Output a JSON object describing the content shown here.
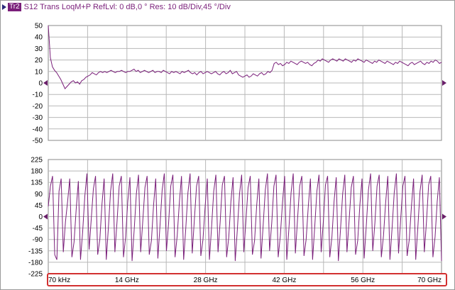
{
  "trace": {
    "tag": "Tr2",
    "info": "S12 Trans LoqM+P RefLvl: 0  dB,0 ° Res: 10  dB/Div,45 °/Div"
  },
  "colors": {
    "trace": "#7a1f7a",
    "grid": "#b8b8b8",
    "highlight_box": "#d23030",
    "ref_marker": "#6a1f6a"
  },
  "chart_data": [
    {
      "type": "line",
      "title": "",
      "xlabel": "",
      "ylabel": "",
      "ylim": [
        -50,
        50
      ],
      "yticks": [
        "50",
        "40",
        "30",
        "20",
        "10",
        "0",
        "-10",
        "-20",
        "-30",
        "-40",
        "-50"
      ],
      "reference_value": 0,
      "series": [
        {
          "values": [
            50,
            22,
            14,
            11,
            9,
            6,
            3,
            -1,
            -5,
            -3,
            -1,
            1,
            2,
            0,
            1,
            -1,
            2,
            3,
            5,
            6,
            7,
            9,
            8,
            7,
            9,
            10,
            9,
            10,
            9,
            10,
            11,
            10,
            9,
            10,
            10,
            11,
            10,
            9,
            10,
            10,
            11,
            12,
            10,
            11,
            9,
            10,
            11,
            10,
            9,
            10,
            11,
            9,
            10,
            10,
            9,
            11,
            10,
            9,
            8,
            10,
            9,
            10,
            9,
            8,
            10,
            9,
            10,
            11,
            9,
            8,
            9,
            7,
            9,
            10,
            8,
            9,
            10,
            9,
            8,
            9,
            10,
            8,
            7,
            9,
            10,
            8,
            9,
            11,
            8,
            9,
            10,
            7,
            6,
            5,
            6,
            7,
            5,
            6,
            8,
            7,
            6,
            8,
            9,
            7,
            8,
            10,
            9,
            11,
            17,
            18,
            16,
            17,
            15,
            16,
            18,
            17,
            19,
            18,
            17,
            16,
            18,
            19,
            18,
            17,
            18,
            16,
            15,
            17,
            18,
            20,
            19,
            21,
            20,
            19,
            18,
            20,
            21,
            20,
            19,
            21,
            20,
            19,
            21,
            20,
            19,
            18,
            20,
            19,
            21,
            20,
            19,
            18,
            20,
            19,
            18,
            17,
            19,
            18,
            20,
            19,
            18,
            17,
            19,
            18,
            17,
            16,
            18,
            17,
            19,
            18,
            17,
            16,
            15,
            17,
            18,
            16,
            17,
            18,
            19,
            17,
            16,
            18,
            17,
            19,
            18,
            20,
            19,
            17,
            18
          ]
        }
      ]
    },
    {
      "type": "line",
      "title": "",
      "xlabel": "",
      "ylabel": "",
      "ylim": [
        -225,
        225
      ],
      "yticks": [
        "225",
        "180",
        "135",
        "90",
        "45",
        "0",
        "-45",
        "-90",
        "-135",
        "-180",
        "-225"
      ],
      "reference_value": 0,
      "xticks": [
        "70 kHz",
        "14 GHz",
        "28 GHz",
        "42 GHz",
        "56 GHz",
        "70 GHz"
      ],
      "series": [
        {
          "values": [
            40,
            120,
            160,
            -150,
            -170,
            100,
            150,
            -140,
            -20,
            60,
            150,
            -160,
            -100,
            30,
            140,
            -170,
            -60,
            80,
            170,
            -130,
            -10,
            110,
            160,
            -150,
            -90,
            50,
            150,
            -170,
            -40,
            100,
            170,
            -140,
            -20,
            120,
            160,
            -160,
            -80,
            60,
            155,
            -175,
            -50,
            90,
            165,
            -140,
            -15,
            115,
            160,
            -150,
            -95,
            45,
            150,
            -165,
            -35,
            105,
            170,
            -135,
            -25,
            120,
            165,
            -160,
            -75,
            55,
            160,
            -170,
            -45,
            95,
            170,
            -145,
            -10,
            120,
            160,
            -155,
            -90,
            40,
            150,
            -170,
            -40,
            100,
            165,
            -140,
            -20,
            125,
            160,
            -160,
            -80,
            60,
            155,
            -175,
            -50,
            90,
            165,
            -140,
            -15,
            115,
            160,
            -150,
            -95,
            45,
            150,
            -165,
            -35,
            105,
            170,
            -135,
            -25,
            120,
            165,
            -160,
            -75,
            55,
            160,
            -170,
            -45,
            95,
            170,
            -145,
            -10,
            120,
            160,
            -155,
            -90,
            40,
            150,
            -170,
            -40,
            100,
            165,
            -140,
            -20,
            125,
            160,
            -160,
            -80,
            60,
            155,
            -175,
            -50,
            90,
            165,
            -140,
            -15,
            115,
            160,
            -150,
            -95,
            45,
            150,
            -165,
            -35,
            105,
            170,
            -135,
            -25,
            120,
            165,
            -160,
            -75,
            55,
            160,
            -170,
            -45,
            95,
            170,
            -145,
            -10,
            120,
            160,
            -155,
            -90,
            40,
            150,
            -170,
            -40,
            100,
            165,
            -140,
            -20,
            125,
            160,
            -160,
            -80,
            60,
            155,
            -175
          ]
        }
      ]
    }
  ]
}
